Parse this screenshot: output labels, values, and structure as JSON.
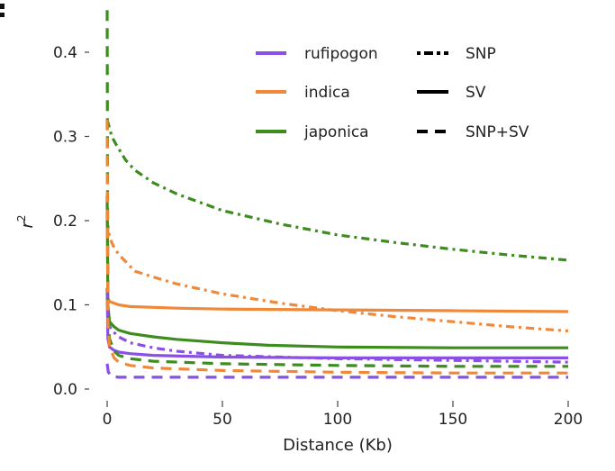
{
  "chart_data": {
    "type": "line",
    "title": "",
    "xlabel": "Distance (Kb)",
    "ylabel": "r",
    "ylabel_superscript": "2",
    "xlim": [
      0,
      200
    ],
    "ylim": [
      0,
      0.45
    ],
    "xticks": [
      "0",
      "50",
      "100",
      "150",
      "200"
    ],
    "xtick_values": [
      0,
      50,
      100,
      150,
      200
    ],
    "yticks": [
      "0.0",
      "0.1",
      "0.2",
      "0.3",
      "0.4"
    ],
    "ytick_values": [
      0,
      0.1,
      0.2,
      0.3,
      0.4
    ],
    "grid": false,
    "legend_placement": "top-right",
    "legend_populations": [
      {
        "name": "rufipogon",
        "color": "#8a4fe3"
      },
      {
        "name": "indica",
        "color": "#f0883a"
      },
      {
        "name": "japonica",
        "color": "#3d8c1e"
      }
    ],
    "legend_styles": [
      {
        "name": "SNP",
        "dash": "dash-dot"
      },
      {
        "name": "SV",
        "dash": "solid"
      },
      {
        "name": "SNP+SV",
        "dash": "dashed"
      }
    ],
    "series": [
      {
        "population": "japonica",
        "marker": "SNP",
        "color": "#3d8c1e",
        "dash": "dash-dot",
        "x": [
          0,
          0.5,
          2,
          4,
          8,
          12,
          20,
          30,
          50,
          75,
          100,
          125,
          150,
          175,
          200
        ],
        "y": [
          0.32,
          0.315,
          0.3,
          0.29,
          0.272,
          0.26,
          0.245,
          0.232,
          0.212,
          0.196,
          0.183,
          0.174,
          0.166,
          0.159,
          0.153
        ]
      },
      {
        "population": "indica",
        "marker": "SNP",
        "color": "#f0883a",
        "dash": "dash-dot",
        "x": [
          0,
          0.5,
          1,
          3,
          5,
          12,
          20,
          30,
          50,
          75,
          100,
          125,
          150,
          175,
          200
        ],
        "y": [
          0.2,
          0.19,
          0.18,
          0.168,
          0.16,
          0.14,
          0.133,
          0.125,
          0.113,
          0.102,
          0.093,
          0.086,
          0.08,
          0.074,
          0.069
        ]
      },
      {
        "population": "rufipogon",
        "marker": "SNP",
        "color": "#8a4fe3",
        "dash": "dash-dot",
        "x": [
          0,
          1,
          2,
          5,
          10,
          20,
          30,
          50,
          100,
          150,
          200
        ],
        "y": [
          0.08,
          0.075,
          0.07,
          0.062,
          0.055,
          0.049,
          0.045,
          0.04,
          0.036,
          0.034,
          0.032
        ]
      },
      {
        "population": "indica",
        "marker": "SV",
        "color": "#f0883a",
        "dash": "solid",
        "x": [
          0,
          0.3,
          1,
          5,
          10,
          30,
          50,
          100,
          150,
          200
        ],
        "y": [
          0.12,
          0.108,
          0.104,
          0.1,
          0.098,
          0.096,
          0.095,
          0.094,
          0.093,
          0.092
        ]
      },
      {
        "population": "japonica",
        "marker": "SV",
        "color": "#3d8c1e",
        "dash": "solid",
        "x": [
          0,
          0.3,
          1,
          3,
          5,
          10,
          20,
          30,
          50,
          70,
          100,
          150,
          200
        ],
        "y": [
          0.23,
          0.1,
          0.08,
          0.074,
          0.07,
          0.066,
          0.062,
          0.059,
          0.055,
          0.052,
          0.05,
          0.049,
          0.049
        ]
      },
      {
        "population": "rufipogon",
        "marker": "SV",
        "color": "#8a4fe3",
        "dash": "solid",
        "x": [
          0,
          0.3,
          1,
          3,
          5,
          10,
          20,
          50,
          100,
          150,
          200
        ],
        "y": [
          0.12,
          0.06,
          0.05,
          0.046,
          0.044,
          0.042,
          0.04,
          0.038,
          0.037,
          0.037,
          0.037
        ]
      },
      {
        "population": "japonica",
        "marker": "SNP+SV",
        "color": "#3d8c1e",
        "dash": "dashed",
        "x": [
          0,
          0.3,
          1,
          3,
          5,
          10,
          20,
          50,
          100,
          150,
          200
        ],
        "y": [
          0.45,
          0.1,
          0.06,
          0.045,
          0.04,
          0.036,
          0.033,
          0.03,
          0.028,
          0.027,
          0.027
        ]
      },
      {
        "population": "indica",
        "marker": "SNP+SV",
        "color": "#f0883a",
        "dash": "dashed",
        "x": [
          0,
          0.3,
          1,
          3,
          5,
          10,
          20,
          50,
          100,
          150,
          200
        ],
        "y": [
          0.32,
          0.08,
          0.05,
          0.037,
          0.032,
          0.028,
          0.025,
          0.022,
          0.02,
          0.019,
          0.019
        ]
      },
      {
        "population": "rufipogon",
        "marker": "SNP+SV",
        "color": "#8a4fe3",
        "dash": "dashed",
        "x": [
          0,
          0.5,
          2,
          5,
          10,
          50,
          100,
          150,
          200
        ],
        "y": [
          0.03,
          0.02,
          0.015,
          0.014,
          0.014,
          0.014,
          0.014,
          0.014,
          0.014
        ]
      }
    ]
  }
}
